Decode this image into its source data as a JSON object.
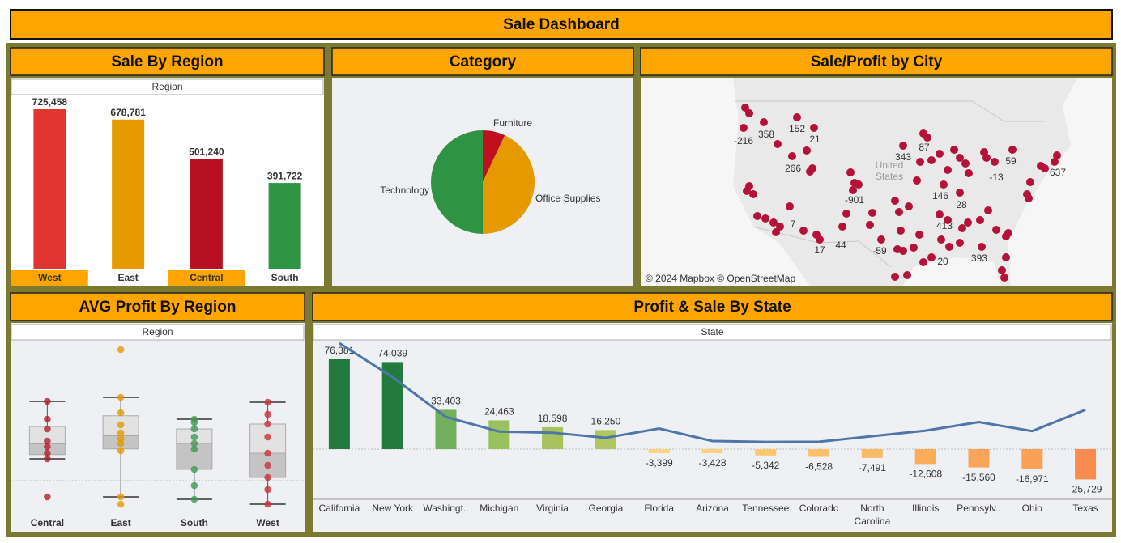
{
  "header": {
    "title": "Sale Dashboard"
  },
  "chart_data": [
    {
      "type": "bar",
      "title": "Sale By Region",
      "subtitle": "Region",
      "categories": [
        "West",
        "East",
        "Central",
        "South"
      ],
      "values": [
        725458,
        678781,
        501240,
        391722
      ],
      "value_labels": [
        "725,458",
        "678,781",
        "501,240",
        "391,722"
      ],
      "colors": [
        "#e03531",
        "#e59a00",
        "#b80f22",
        "#2e9444"
      ]
    },
    {
      "type": "pie",
      "title": "Category",
      "categories": [
        "Furniture",
        "Office Supplies",
        "Technology"
      ],
      "values": [
        7,
        43,
        50
      ],
      "colors": [
        "#c0101f",
        "#e59a00",
        "#2e9444"
      ]
    },
    {
      "type": "map",
      "title": "Sale/Profit by City",
      "values": [
        -216,
        358,
        152,
        21,
        266,
        87,
        343,
        59,
        -13,
        637,
        -901,
        146,
        28,
        413,
        7,
        17,
        44,
        -59,
        20,
        393
      ],
      "background_label": "United States",
      "attribution": "© 2024 Mapbox © OpenStreetMap",
      "color": "#b5123a"
    },
    {
      "type": "box",
      "title": "AVG Profit By Region",
      "subtitle": "Region",
      "categories": [
        "Central",
        "East",
        "South",
        "West"
      ],
      "points": [
        [
          98,
          76,
          64,
          49,
          42,
          34,
          27,
          -20
        ],
        [
          162,
          103,
          84,
          69,
          59,
          52,
          46,
          37,
          -20,
          -29
        ],
        [
          76,
          72,
          64,
          54,
          46,
          39,
          14,
          -6,
          -23
        ],
        [
          97,
          82,
          70,
          54,
          34,
          19,
          4,
          -11,
          -29
        ]
      ],
      "colors": [
        "#b3202e",
        "#e59a00",
        "#3f9a55",
        "#c8333c"
      ]
    },
    {
      "type": "combo",
      "title": "Profit & Sale By State",
      "subtitle": "State",
      "categories": [
        "California",
        "New York",
        "Washingt..",
        "Michigan",
        "Virginia",
        "Georgia",
        "Florida",
        "Arizona",
        "Tennessee",
        "Colorado",
        "North Carolina",
        "Illinois",
        "Pennsylv..",
        "Ohio",
        "Texas"
      ],
      "series": [
        {
          "type": "bar",
          "values": [
            76381,
            74039,
            33403,
            24463,
            18598,
            16250,
            -3399,
            -3428,
            -5342,
            -6528,
            -7491,
            -12608,
            -15560,
            -16971,
            -25729
          ],
          "value_labels": [
            "76,381",
            "74,039",
            "33,403",
            "24,463",
            "18,598",
            "16,250",
            "-3,399",
            "-3,428",
            "-5,342",
            "-6,528",
            "-7,491",
            "-12,608",
            "-15,560",
            "-16,971",
            "-25,729"
          ],
          "colors": [
            "#237a3f",
            "#237a3f",
            "#72b05c",
            "#99c25e",
            "#a6c35e",
            "#b0c663",
            "#fbd482",
            "#fbd07e",
            "#fbc66e",
            "#fbc06a",
            "#fbbb66",
            "#fbad5c",
            "#faa459",
            "#faa157",
            "#f88b4f"
          ]
        },
        {
          "type": "line",
          "color": "#4f76a8",
          "values": [
            458000,
            311000,
            139000,
            76000,
            71000,
            49000,
            89000,
            35000,
            31000,
            32000,
            56000,
            80000,
            117000,
            78000,
            170000
          ]
        }
      ]
    }
  ]
}
